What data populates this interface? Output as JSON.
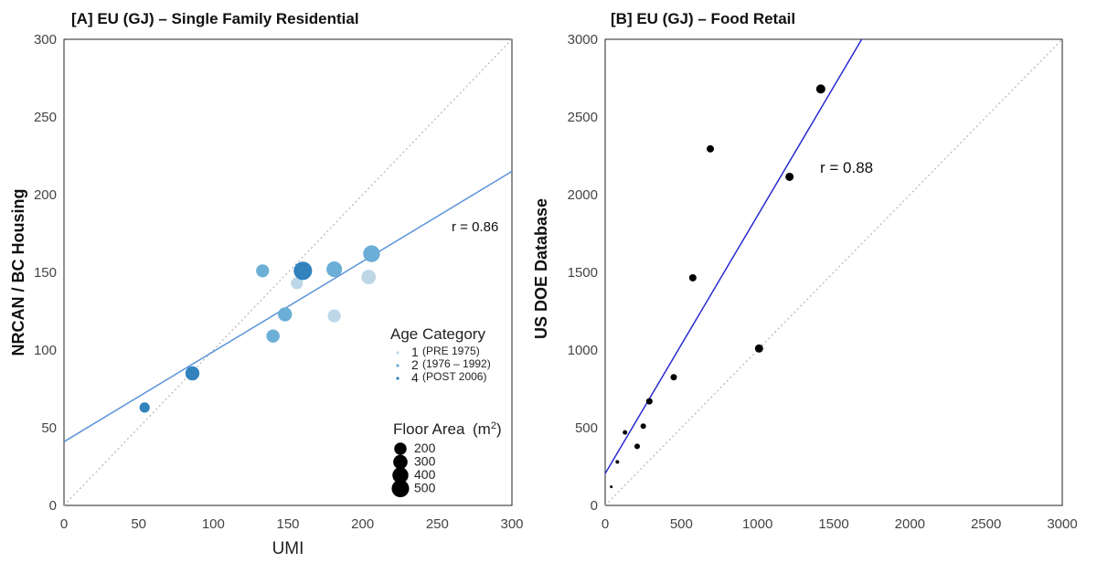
{
  "chart_data": [
    {
      "type": "scatter",
      "title": "[A]  EU (GJ) – Single Family Residential",
      "xlabel": "UMI",
      "ylabel": "NRCAN / BC Housing",
      "xlim": [
        0,
        300
      ],
      "ylim": [
        0,
        300
      ],
      "x_ticks": [
        "0",
        "50",
        "100",
        "150",
        "200",
        "250",
        "300"
      ],
      "y_ticks": [
        "0",
        "50",
        "100",
        "150",
        "200",
        "250",
        "300"
      ],
      "annotation": "r = 0.86",
      "regression": {
        "intercept": 41,
        "slope": 0.58
      },
      "identity_line": true,
      "colors": {
        "1": "#bdd7e7",
        "2": "#6baed6",
        "4": "#3182bd",
        "fit": "#5b93d9"
      },
      "legend_age": {
        "title": "Age Category",
        "items": [
          {
            "num": "1",
            "label": "(PRE 1975)",
            "cat": "1"
          },
          {
            "num": "2",
            "label": "(1976 – 1992)",
            "cat": "2"
          },
          {
            "num": "4",
            "label": "(POST 2006)",
            "cat": "4"
          }
        ]
      },
      "legend_area": {
        "title": "Floor Area",
        "unit_base": "(m",
        "unit_sup": "2",
        "unit_close": ")",
        "items": [
          "200",
          "300",
          "400",
          "500"
        ]
      },
      "points": [
        {
          "x": 54,
          "y": 63,
          "cat": "4",
          "area": 100
        },
        {
          "x": 86,
          "y": 85,
          "cat": "4",
          "area": 250
        },
        {
          "x": 133,
          "y": 151,
          "cat": "2",
          "area": 200
        },
        {
          "x": 140,
          "y": 109,
          "cat": "2",
          "area": 210
        },
        {
          "x": 148,
          "y": 123,
          "cat": "2",
          "area": 250
        },
        {
          "x": 156,
          "y": 143,
          "cat": "1",
          "area": 160
        },
        {
          "x": 160,
          "y": 151,
          "cat": "4",
          "area": 500
        },
        {
          "x": 181,
          "y": 152,
          "cat": "2",
          "area": 330
        },
        {
          "x": 181,
          "y": 122,
          "cat": "1",
          "area": 200
        },
        {
          "x": 204,
          "y": 147,
          "cat": "1",
          "area": 270
        },
        {
          "x": 206,
          "y": 162,
          "cat": "2",
          "area": 400
        }
      ]
    },
    {
      "type": "scatter",
      "title": "[B]  EU (GJ) – Food Retail",
      "xlabel": "",
      "ylabel": "US DOE Database",
      "xlim": [
        0,
        3000
      ],
      "ylim": [
        0,
        3000
      ],
      "x_ticks": [
        "0",
        "500",
        "1000",
        "1500",
        "2000",
        "2500",
        "3000"
      ],
      "y_ticks": [
        "0",
        "500",
        "1000",
        "1500",
        "2000",
        "2500",
        "3000"
      ],
      "annotation": "r = 0.88",
      "regression": {
        "intercept": 205,
        "slope": 1.66
      },
      "identity_line": true,
      "colors": {
        "point": "#000000",
        "fit": "#2a2ad0"
      },
      "points": [
        {
          "x": 40,
          "y": 120,
          "r": 1.5
        },
        {
          "x": 80,
          "y": 280,
          "r": 2
        },
        {
          "x": 130,
          "y": 470,
          "r": 2.5
        },
        {
          "x": 210,
          "y": 380,
          "r": 3
        },
        {
          "x": 250,
          "y": 510,
          "r": 3
        },
        {
          "x": 290,
          "y": 670,
          "r": 3.5
        },
        {
          "x": 450,
          "y": 825,
          "r": 3.5
        },
        {
          "x": 575,
          "y": 1465,
          "r": 4
        },
        {
          "x": 690,
          "y": 2295,
          "r": 4
        },
        {
          "x": 1010,
          "y": 1010,
          "r": 4.5
        },
        {
          "x": 1210,
          "y": 2115,
          "r": 4.5
        },
        {
          "x": 1415,
          "y": 2680,
          "r": 5
        }
      ]
    }
  ]
}
